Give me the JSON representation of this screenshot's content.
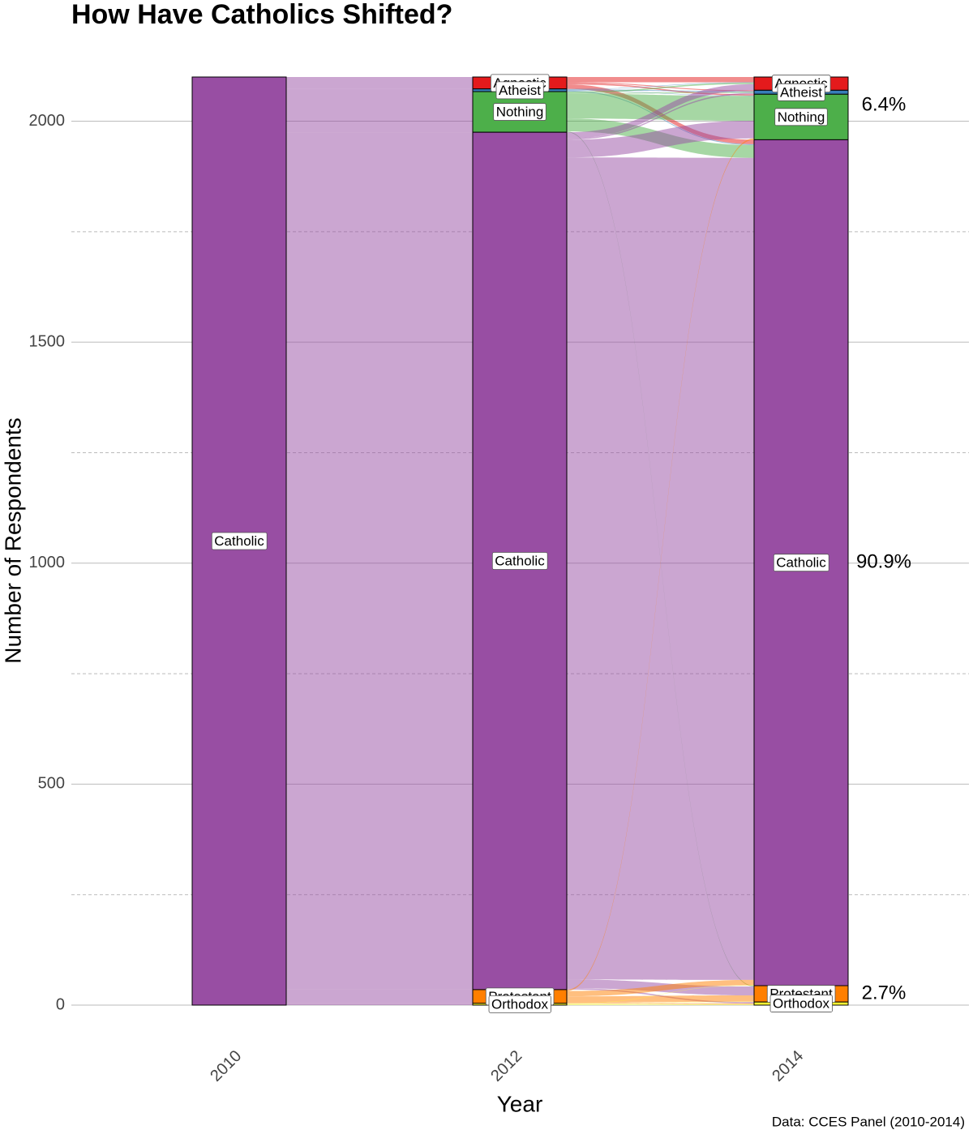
{
  "chart_data": {
    "type": "alluvial",
    "title": "How Have Catholics Shifted?",
    "x_label": "Year",
    "y_label": "Number of Respondents",
    "caption": "Data: CCES Panel (2010-2014)",
    "years": [
      "2010",
      "2012",
      "2014"
    ],
    "ylim": [
      0,
      2100
    ],
    "yticks": [
      0,
      500,
      1000,
      1500,
      2000
    ],
    "yminorticks": [
      250,
      750,
      1250,
      1750
    ],
    "grid": true,
    "colors": {
      "Agnostic": "#e41a1c",
      "Atheist": "#377eb8",
      "Nothing": "#4daf4a",
      "Catholic": "#984ea3",
      "Protestant": "#ff7f00",
      "Orthodox": "#ffff33"
    },
    "strata": [
      [
        {
          "name": "Catholic",
          "value": 2100
        }
      ],
      [
        {
          "name": "Agnostic",
          "value": 27
        },
        {
          "name": "Atheist",
          "value": 6
        },
        {
          "name": "Nothing",
          "value": 92
        },
        {
          "name": "Catholic",
          "value": 1940
        },
        {
          "name": "Protestant",
          "value": 31
        },
        {
          "name": "Orthodox",
          "value": 4
        }
      ],
      [
        {
          "name": "Agnostic",
          "value": 30
        },
        {
          "name": "Atheist",
          "value": 9
        },
        {
          "name": "Nothing",
          "value": 103
        },
        {
          "name": "Catholic",
          "value": 1914
        },
        {
          "name": "Protestant",
          "value": 37
        },
        {
          "name": "Orthodox",
          "value": 7
        }
      ]
    ],
    "flows": [
      [
        {
          "from": "Catholic",
          "to": "Agnostic",
          "value": 27
        },
        {
          "from": "Catholic",
          "to": "Atheist",
          "value": 6
        },
        {
          "from": "Catholic",
          "to": "Nothing",
          "value": 92
        },
        {
          "from": "Catholic",
          "to": "Catholic",
          "value": 1940
        },
        {
          "from": "Catholic",
          "to": "Protestant",
          "value": 31
        },
        {
          "from": "Catholic",
          "to": "Orthodox",
          "value": 4
        }
      ],
      [
        {
          "from": "Agnostic",
          "to": "Agnostic",
          "value": 12
        },
        {
          "from": "Agnostic",
          "to": "Atheist",
          "value": 2
        },
        {
          "from": "Agnostic",
          "to": "Nothing",
          "value": 3
        },
        {
          "from": "Agnostic",
          "to": "Catholic",
          "value": 10
        },
        {
          "from": "Atheist",
          "to": "Agnostic",
          "value": 1
        },
        {
          "from": "Atheist",
          "to": "Atheist",
          "value": 2
        },
        {
          "from": "Atheist",
          "to": "Nothing",
          "value": 1
        },
        {
          "from": "Atheist",
          "to": "Catholic",
          "value": 2
        },
        {
          "from": "Nothing",
          "to": "Agnostic",
          "value": 3
        },
        {
          "from": "Nothing",
          "to": "Atheist",
          "value": 2
        },
        {
          "from": "Nothing",
          "to": "Nothing",
          "value": 56
        },
        {
          "from": "Nothing",
          "to": "Catholic",
          "value": 29
        },
        {
          "from": "Nothing",
          "to": "Protestant",
          "value": 2
        },
        {
          "from": "Catholic",
          "to": "Agnostic",
          "value": 14
        },
        {
          "from": "Catholic",
          "to": "Atheist",
          "value": 3
        },
        {
          "from": "Catholic",
          "to": "Nothing",
          "value": 40
        },
        {
          "from": "Catholic",
          "to": "Catholic",
          "value": 1860
        },
        {
          "from": "Catholic",
          "to": "Protestant",
          "value": 20
        },
        {
          "from": "Catholic",
          "to": "Orthodox",
          "value": 3
        },
        {
          "from": "Protestant",
          "to": "Nothing",
          "value": 3
        },
        {
          "from": "Protestant",
          "to": "Catholic",
          "value": 12
        },
        {
          "from": "Protestant",
          "to": "Protestant",
          "value": 14
        },
        {
          "from": "Protestant",
          "to": "Orthodox",
          "value": 2
        },
        {
          "from": "Orthodox",
          "to": "Catholic",
          "value": 1
        },
        {
          "from": "Orthodox",
          "to": "Protestant",
          "value": 1
        },
        {
          "from": "Orthodox",
          "to": "Orthodox",
          "value": 2
        }
      ]
    ],
    "annotations": [
      {
        "text": "6.4%",
        "stratum": "Nothing"
      },
      {
        "text": "90.9%",
        "stratum": "Catholic"
      },
      {
        "text": "2.7%",
        "stratum": "Protestant"
      }
    ]
  }
}
